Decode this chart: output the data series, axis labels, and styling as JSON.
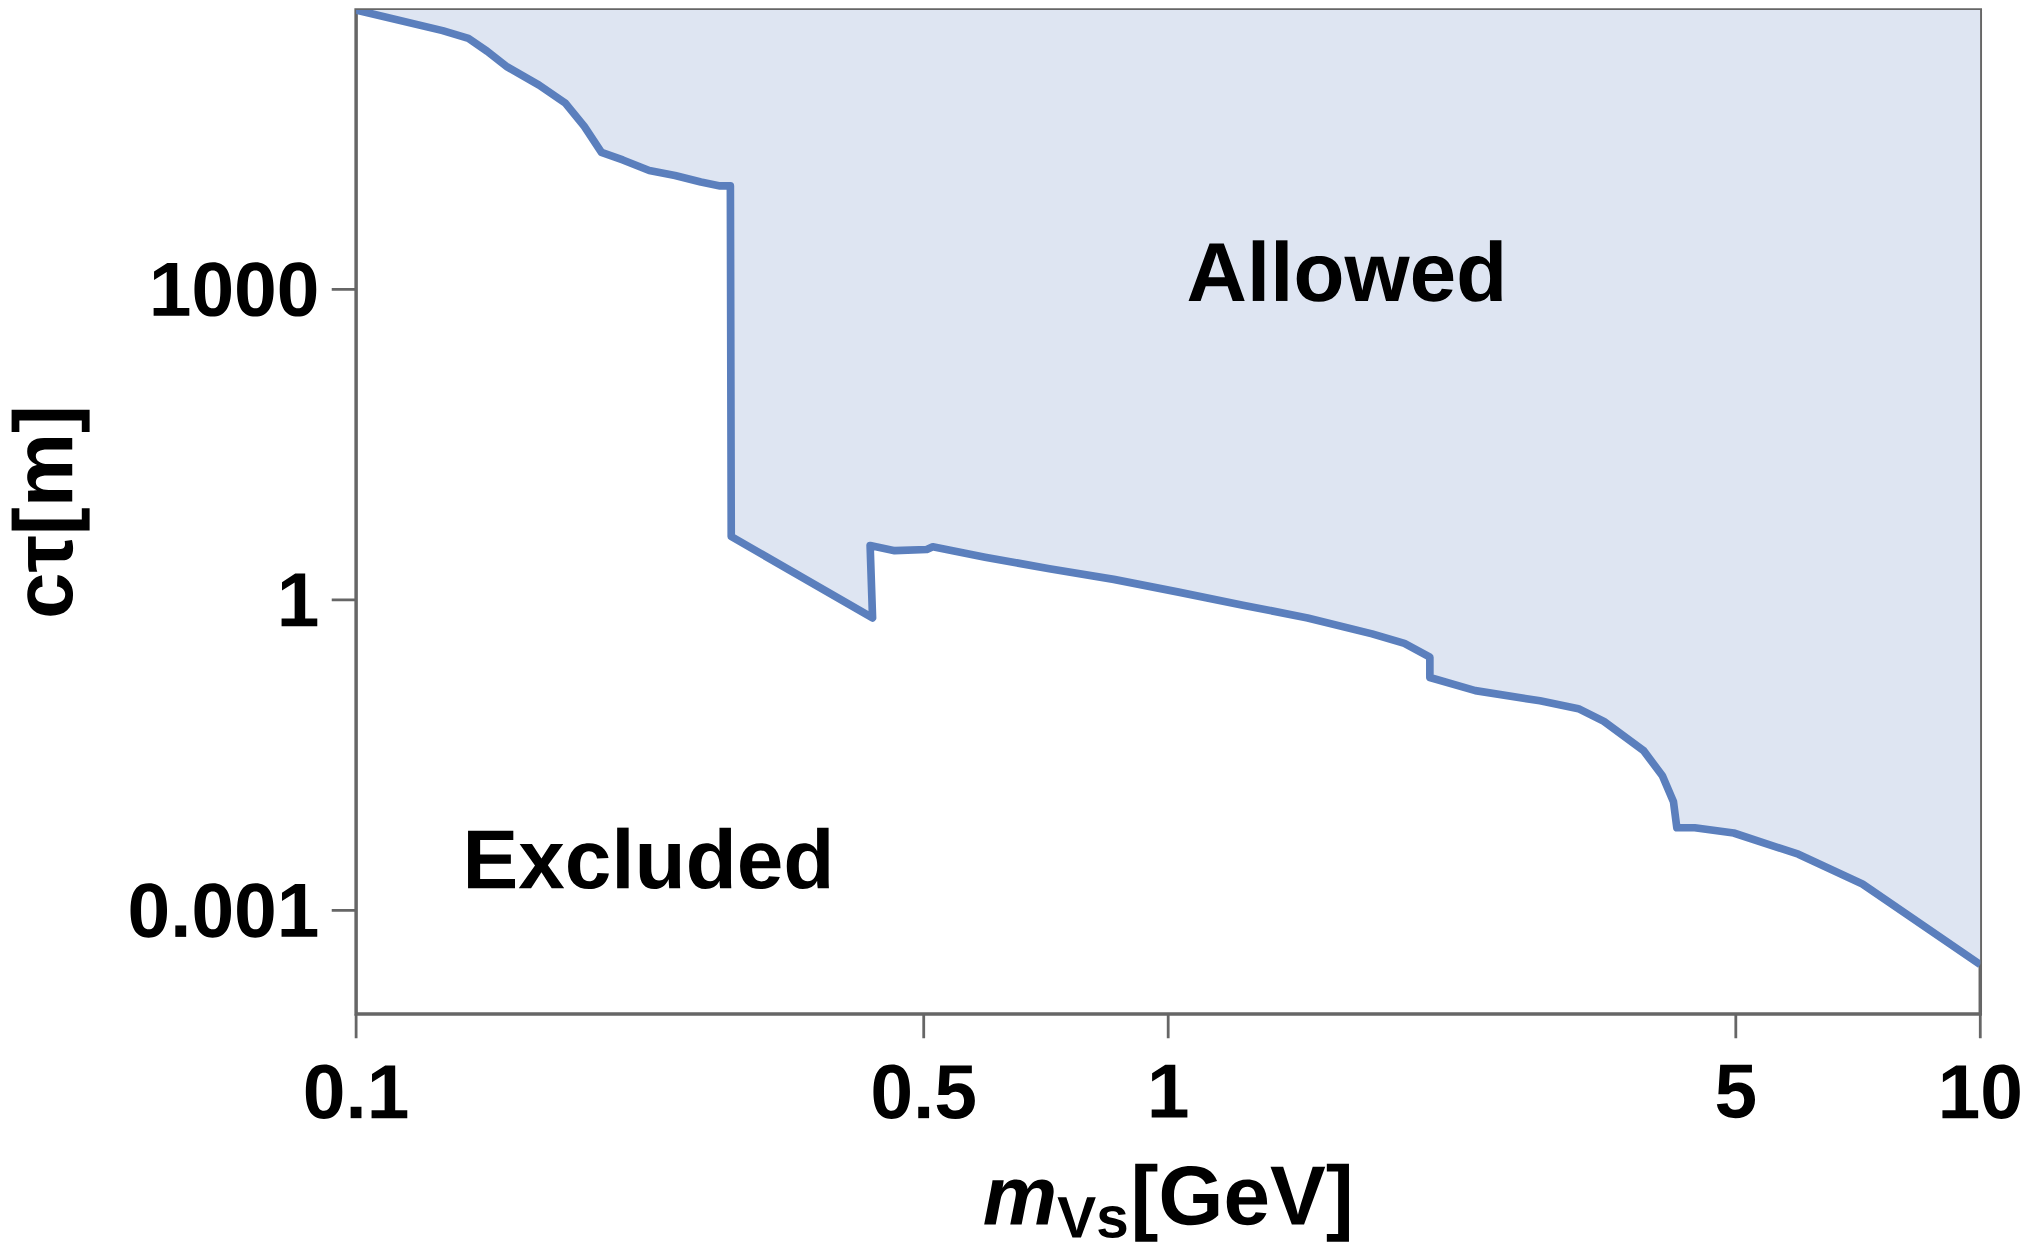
{
  "chart_data": {
    "type": "line",
    "xlabel": "*m*$_{Vs}$[GeV]",
    "ylabel": "cτ[m]",
    "log": "xy",
    "xlim": [
      0.1,
      10
    ],
    "ylim": [
      0.0001,
      500000
    ],
    "xticks": [
      0.1,
      0.5,
      1,
      5,
      10
    ],
    "yticks": [
      0.001,
      1,
      1000
    ],
    "grid": false,
    "series": [
      {
        "color": "#5b7fbd",
        "upper": [
          500000,
          500000,
          500000,
          500000,
          500000,
          500000,
          500000,
          500000,
          500000,
          500000,
          500000,
          500000,
          500000,
          500000,
          500000,
          500000,
          500000,
          500000,
          500000,
          500000,
          500000,
          500000,
          500000,
          500000,
          500000,
          500000,
          500000,
          500000,
          500000,
          500000,
          500000,
          500000,
          500000,
          500000,
          500000,
          500000,
          500000,
          500000,
          500000,
          500000,
          500000,
          500000,
          500000,
          500000
        ],
        "lower": [
          500000,
          316000,
          266000,
          200000,
          141000,
          94000,
          63000,
          37600,
          21100,
          17800,
          14100,
          12600,
          10900,
          10000,
          10000,
          4.1,
          0.67,
          3.35,
          2.99,
          3.07,
          3.26,
          2.59,
          2.0,
          1.58,
          1.19,
          0.89,
          0.67,
          0.47,
          0.38,
          0.28,
          0.178,
          0.133,
          0.106,
          0.089,
          0.067,
          0.035,
          0.02,
          0.0112,
          0.0063,
          0.0063,
          0.0056,
          0.0035,
          0.0018,
          0.0003
        ],
        "x": [
          0.1,
          0.1278,
          0.1375,
          0.145,
          0.1535,
          0.168,
          0.181,
          0.191,
          0.2005,
          0.213,
          0.2296,
          0.247,
          0.2658,
          0.2807,
          0.289,
          0.2897,
          0.4325,
          0.4295,
          0.4605,
          0.5044,
          0.513,
          0.595,
          0.714,
          0.857,
          1.03,
          1.236,
          1.485,
          1.783,
          1.954,
          2.1,
          2.1,
          2.389,
          2.87,
          3.2,
          3.44,
          3.85,
          4.06,
          4.19,
          4.23,
          4.45,
          4.97,
          5.97,
          7.16,
          10
        ],
        "values": [
          500000,
          316000,
          266000,
          200000,
          141000,
          94000,
          63000,
          37600,
          21100,
          17800,
          14100,
          12600,
          10900,
          10000,
          10000,
          4.1,
          0.67,
          3.35,
          2.99,
          3.07,
          3.26,
          2.59,
          2.0,
          1.58,
          1.19,
          0.89,
          0.67,
          0.47,
          0.38,
          0.28,
          0.178,
          0.133,
          0.106,
          0.089,
          0.067,
          0.035,
          0.02,
          0.0112,
          0.0063,
          0.0063,
          0.0056,
          0.0035,
          0.0018,
          0.0003
        ]
      }
    ],
    "annotations": [
      "Allowed",
      "Excluded"
    ]
  }
}
